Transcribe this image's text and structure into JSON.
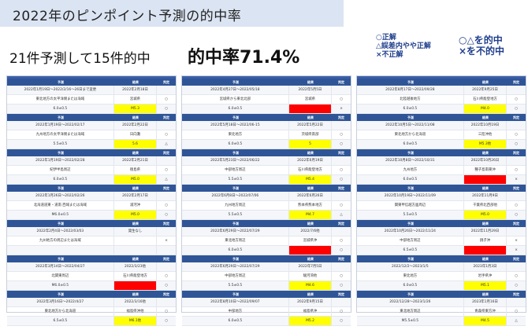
{
  "header": {
    "title": "2022年のピンポイント予測の的中率",
    "summary": "21件予測して15件的中",
    "rate": "的中率71.4%"
  },
  "legend": {
    "small": [
      "○正解",
      "△誤差内やや正解",
      "×不正解"
    ],
    "large": [
      "○△を的中",
      "×を不的中"
    ]
  },
  "table_header": {
    "predict": "予測",
    "result": "結果",
    "judge": "判定"
  },
  "colors": {
    "header_bg": "#2f5597",
    "highlight_yellow": "#ffff00",
    "highlight_red": "#ff0000",
    "title_bg": "#dbe4f2"
  },
  "columns": [
    [
      {
        "r": [
          [
            "2022年1月19日〜2022/2/16〜26日まで変更",
            "2022年2月18日",
            ""
          ],
          [
            "東北地方の太平洋側または海域",
            "宮城県",
            "○"
          ],
          [
            "6.0±0.5",
            "M5.3",
            "○"
          ]
        ],
        "hl": "y"
      },
      {
        "r": [
          [
            "2022年1月19日〜2022/02/17",
            "2022年2月22日",
            ""
          ],
          [
            "九州地方の太平洋側または海域",
            "日向灘",
            "○"
          ],
          [
            "5.5±0.5",
            "5.6",
            "△"
          ]
        ],
        "hl": "y"
      },
      {
        "r": [
          [
            "2022年1月19日〜2022/02/28",
            "2022年2月21日",
            ""
          ],
          [
            "紀伊半島周辺",
            "徳島県",
            "○"
          ],
          [
            "6.0±0.5",
            "M5.0",
            "△"
          ]
        ],
        "hl": "y"
      },
      {
        "r": [
          [
            "2022年1月26日〜2022/02/26",
            "2022年2月17日",
            ""
          ],
          [
            "北海道道東・道南 西域または海域",
            "浦河沖",
            "○"
          ],
          [
            "M6.0±0.5",
            "M5.0",
            "○"
          ]
        ],
        "hl": "y"
      },
      {
        "r": [
          [
            "2022年2月4日〜2022/03/03",
            "発生なし",
            ""
          ],
          [
            "九州地方の周辺または海域",
            "",
            "×"
          ],
          [
            "",
            "",
            ""
          ]
        ],
        "hl": "n"
      },
      {
        "r": [
          [
            "2022年3月14日〜2022/04/27",
            "2022/3/23他",
            ""
          ],
          [
            "北関東周辺",
            "石川県能登地方",
            "○"
          ],
          [
            "M6.0±0.5",
            "M5.3",
            "○"
          ]
        ],
        "hl": "r"
      },
      {
        "r": [
          [
            "2022年3月16日〜2022/4/27",
            "2022/3/16他",
            ""
          ],
          [
            "東北地方から北海道",
            "福島県沖他",
            "○"
          ],
          [
            "6.5±0.5",
            "M6.1他",
            "○"
          ]
        ],
        "hl": "y"
      }
    ],
    [
      {
        "r": [
          [
            "2022年4月27日〜2022/05/18",
            "2022年5月5日",
            ""
          ],
          [
            "宮城県から東北北部",
            "宮城県",
            "○"
          ],
          [
            "6.0±0.5",
            "M4.8",
            "×"
          ]
        ],
        "hl": "r"
      },
      {
        "r": [
          [
            "2022年5月18日〜2022/06-15",
            "2022年5月22日",
            ""
          ],
          [
            "東北地方",
            "茨城県南部",
            "○"
          ],
          [
            "6.0±0.5",
            "5",
            "○"
          ]
        ],
        "hl": "y"
      },
      {
        "r": [
          [
            "2022年5月23日〜2022/06/22",
            "2022年6月19日",
            ""
          ],
          [
            "中部地方周辺",
            "石川県能登地方",
            "○"
          ],
          [
            "5.5±0.5",
            "M5.4",
            "○"
          ]
        ],
        "hl": "y"
      },
      {
        "r": [
          [
            "2022年6月8日〜2022/07/06",
            "2022年6月26日",
            ""
          ],
          [
            "九州地方周辺",
            "熊本県熊本地方",
            "○"
          ],
          [
            "5.5±0.5",
            "M4.7",
            "△"
          ]
        ],
        "hl": "y"
      },
      {
        "r": [
          [
            "2022年6月29日〜2022/07/29",
            "2022/7/6他",
            ""
          ],
          [
            "東北地方周辺",
            "宮城県沖",
            "○"
          ],
          [
            "6.0±0.5",
            "",
            "○"
          ]
        ],
        "hl": "r"
      },
      {
        "r": [
          [
            "2022年6月29日〜2022/07/29",
            "2022年7月5日",
            ""
          ],
          [
            "中部地方周辺",
            "駿河湾他",
            "○"
          ],
          [
            "5.5±0.5",
            "M4.6",
            "○"
          ]
        ],
        "hl": "y"
      },
      {
        "r": [
          [
            "2022年8月10日〜2022/09/07",
            "2022年9月15日",
            ""
          ],
          [
            "中部地方",
            "福島県沖",
            "○"
          ],
          [
            "6.0±0.5",
            "M5.2",
            "○"
          ]
        ],
        "hl": "y"
      }
    ],
    [
      {
        "r": [
          [
            "2022年8月17日〜2022/09/28",
            "2022年9月25日",
            ""
          ],
          [
            "北陸越後地方",
            "石川県能登地方",
            "○"
          ],
          [
            "6.0±0.5",
            "M4.0",
            "○"
          ]
        ],
        "hl": "y"
      },
      {
        "r": [
          [
            "2022年10月5日〜2022/11/08",
            "2022年10月19日",
            ""
          ],
          [
            "東北地方から北海道",
            "三陸沖他",
            "○"
          ],
          [
            "6.0±0.5",
            "M5.3他",
            "○"
          ]
        ],
        "hl": "y"
      },
      {
        "r": [
          [
            "2022年10月8日〜2022/10/31",
            "2022年10月26日",
            ""
          ],
          [
            "九州地方",
            "種子島南東沖",
            "○"
          ],
          [
            "6.0±0.5",
            "",
            "×"
          ]
        ],
        "hl": "r"
      },
      {
        "r": [
          [
            "2022年10月19日〜2022/11/09",
            "2022年11月9日",
            ""
          ],
          [
            "関東甲信越方面周辺",
            "千葉県北西部他",
            "○"
          ],
          [
            "5.5±0.5",
            "M5.0",
            "○"
          ]
        ],
        "hl": "y"
      },
      {
        "r": [
          [
            "2022年10月26日〜2022/11/24",
            "2022年11月29日",
            ""
          ],
          [
            "中部地方周辺",
            "銚子沖",
            "×"
          ],
          [
            "6.5±0.5",
            "",
            "×"
          ]
        ],
        "hl": "r"
      },
      {
        "r": [
          [
            "2022/12/2〜2023/1/5",
            "2023年1月3日",
            ""
          ],
          [
            "東北地方",
            "岩手県沖",
            "○"
          ],
          [
            "6.0±0.5",
            "M5.1",
            "○"
          ]
        ],
        "hl": "y"
      },
      {
        "r": [
          [
            "2022/12/28〜2023/1/26",
            "2023年1月16日",
            ""
          ],
          [
            "東北地方周辺",
            "青森県東方沖",
            "○"
          ],
          [
            "M5.5±0.5",
            "M4.5",
            "△"
          ]
        ],
        "hl": "y"
      }
    ]
  ]
}
